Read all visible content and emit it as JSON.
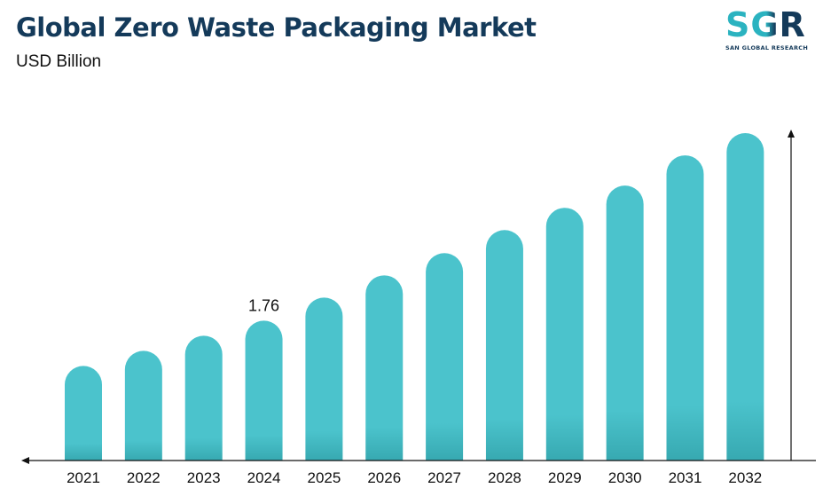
{
  "header": {
    "title": "Global Zero Waste Packaging Market",
    "subtitle": "USD Billion"
  },
  "logo": {
    "letters": "SGR",
    "tagline": "SAN GLOBAL RESEARCH",
    "colors": {
      "primary": "#2bb3c0",
      "secondary": "#143a5a"
    }
  },
  "chart_data": {
    "type": "bar",
    "title": "Global Zero Waste Packaging Market",
    "subtitle": "USD Billion",
    "xlabel": "",
    "ylabel": "",
    "categories": [
      "2021",
      "2022",
      "2023",
      "2024",
      "2025",
      "2026",
      "2027",
      "2028",
      "2029",
      "2030",
      "2031",
      "2032"
    ],
    "series": [
      {
        "values": [
          1.19,
          1.38,
          1.57,
          1.76,
          2.05,
          2.33,
          2.61,
          2.9,
          3.18,
          3.46,
          3.84,
          4.12
        ],
        "color": "#4bc3cc"
      }
    ],
    "data_labels": [
      {
        "category": "2024",
        "text": "1.76"
      }
    ],
    "ylim": [
      0,
      4.12
    ],
    "grid": false,
    "legend": "none",
    "colors": {
      "bar": "#4bc3cc",
      "bar_base": "#37a9b1",
      "axis": "#111111"
    }
  }
}
